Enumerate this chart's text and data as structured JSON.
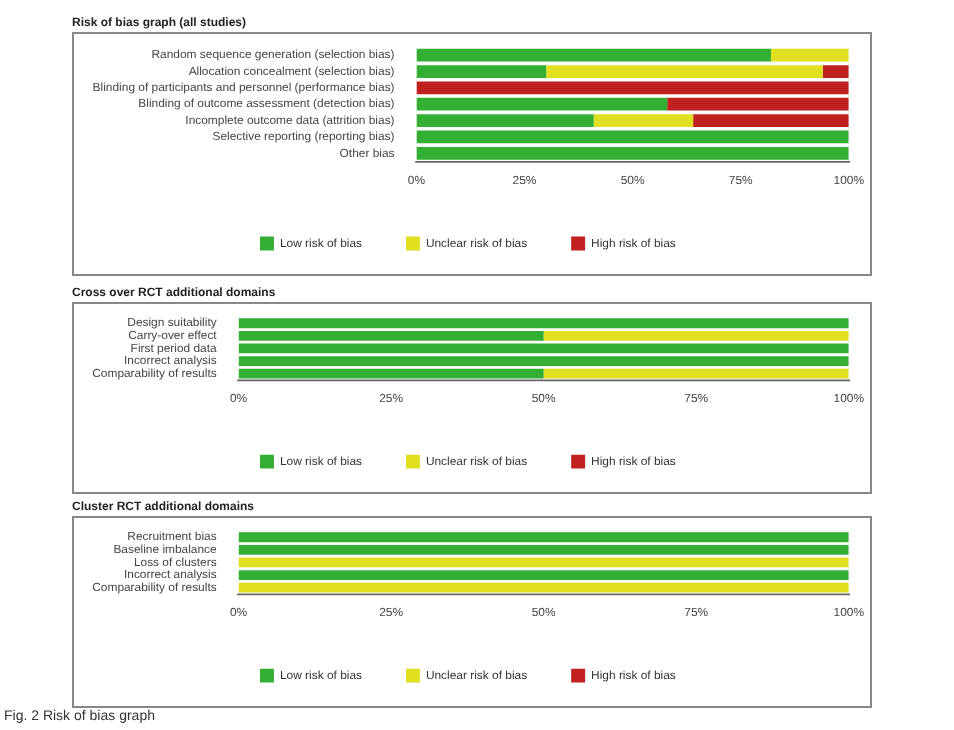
{
  "chart_data": [
    {
      "type": "bar",
      "title": "Risk of bias graph (all studies)",
      "orientation": "horizontal",
      "stacked": true,
      "legend": "bottom",
      "grid": false,
      "categories": [
        "Random sequence generation (selection bias)",
        "Allocation concealment (selection bias)",
        "Blinding of participants and personnel (performance bias)",
        "Blinding of outcome assessment (detection bias)",
        "Incomplete outcome data (attrition bias)",
        "Selective reporting (reporting bias)",
        "Other bias"
      ],
      "series": [
        {
          "name": "Low risk of bias",
          "color": "#33b033",
          "values": [
            82,
            30,
            0,
            58,
            41,
            100,
            100
          ]
        },
        {
          "name": "Unclear risk of bias",
          "color": "#e0e020",
          "values": [
            18,
            64,
            0,
            0,
            23,
            0,
            0
          ]
        },
        {
          "name": "High risk of bias",
          "color": "#c0201e",
          "values": [
            0,
            6,
            100,
            42,
            36,
            0,
            0
          ]
        }
      ],
      "xlim": [
        0,
        100
      ],
      "xticks": [
        {
          "value": 0,
          "label": "0%"
        },
        {
          "value": 25,
          "label": "25%"
        },
        {
          "value": 50,
          "label": "50%"
        },
        {
          "value": 75,
          "label": "75%"
        },
        {
          "value": 100,
          "label": "100%"
        }
      ]
    },
    {
      "type": "bar",
      "title": "Cross over RCT additional domains",
      "orientation": "horizontal",
      "stacked": true,
      "legend": "bottom",
      "grid": false,
      "categories": [
        "Design suitability",
        "Carry-over effect",
        "First period data",
        "Incorrect analysis",
        "Comparability of results"
      ],
      "series": [
        {
          "name": "Low risk of bias",
          "color": "#33b033",
          "values": [
            100,
            50,
            100,
            100,
            50
          ]
        },
        {
          "name": "Unclear risk of bias",
          "color": "#e0e020",
          "values": [
            0,
            50,
            0,
            0,
            50
          ]
        },
        {
          "name": "High risk of bias",
          "color": "#c0201e",
          "values": [
            0,
            0,
            0,
            0,
            0
          ]
        }
      ],
      "xlim": [
        0,
        100
      ],
      "xticks": [
        {
          "value": 0,
          "label": "0%"
        },
        {
          "value": 25,
          "label": "25%"
        },
        {
          "value": 50,
          "label": "50%"
        },
        {
          "value": 75,
          "label": "75%"
        },
        {
          "value": 100,
          "label": "100%"
        }
      ]
    },
    {
      "type": "bar",
      "title": "Cluster RCT additional domains",
      "orientation": "horizontal",
      "stacked": true,
      "legend": "bottom",
      "grid": false,
      "categories": [
        "Recruitment bias",
        "Baseline imbalance",
        "Loss of clusters",
        "Incorrect analysis",
        "Comparability of results"
      ],
      "series": [
        {
          "name": "Low risk of bias",
          "color": "#33b033",
          "values": [
            100,
            100,
            0,
            100,
            0
          ]
        },
        {
          "name": "Unclear risk of bias",
          "color": "#e0e020",
          "values": [
            0,
            0,
            100,
            0,
            100
          ]
        },
        {
          "name": "High risk of bias",
          "color": "#c0201e",
          "values": [
            0,
            0,
            0,
            0,
            0
          ]
        }
      ],
      "xlim": [
        0,
        100
      ],
      "xticks": [
        {
          "value": 0,
          "label": "0%"
        },
        {
          "value": 25,
          "label": "25%"
        },
        {
          "value": 50,
          "label": "50%"
        },
        {
          "value": 75,
          "label": "75%"
        },
        {
          "value": 100,
          "label": "100%"
        }
      ],
      "annotations": [
        "Fig. 2 Risk of bias graph"
      ]
    }
  ]
}
